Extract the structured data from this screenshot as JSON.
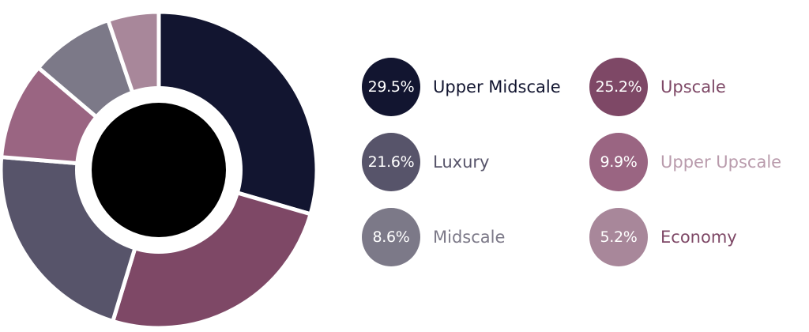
{
  "chart_data": {
    "type": "pie",
    "variant": "donut",
    "title": "",
    "slices": [
      {
        "label": "Upper Midscale",
        "value": 29.5,
        "display": "29.5%",
        "color": "#121530",
        "label_color": "#121530"
      },
      {
        "label": "Upscale",
        "value": 25.2,
        "display": "25.2%",
        "color": "#7e4866",
        "label_color": "#7e4866"
      },
      {
        "label": "Luxury",
        "value": 21.6,
        "display": "21.6%",
        "color": "#57546a",
        "label_color": "#57546a"
      },
      {
        "label": "Upper Upscale",
        "value": 9.9,
        "display": "9.9%",
        "color": "#9a6582",
        "label_color": "#b99bac"
      },
      {
        "label": "Midscale",
        "value": 8.6,
        "display": "8.6%",
        "color": "#7c7988",
        "label_color": "#7c7988"
      },
      {
        "label": "Economy",
        "value": 5.2,
        "display": "5.2%",
        "color": "#a8879a",
        "label_color": "#7e4866"
      }
    ],
    "legend_placement": "right",
    "center_fill": "#000000"
  }
}
